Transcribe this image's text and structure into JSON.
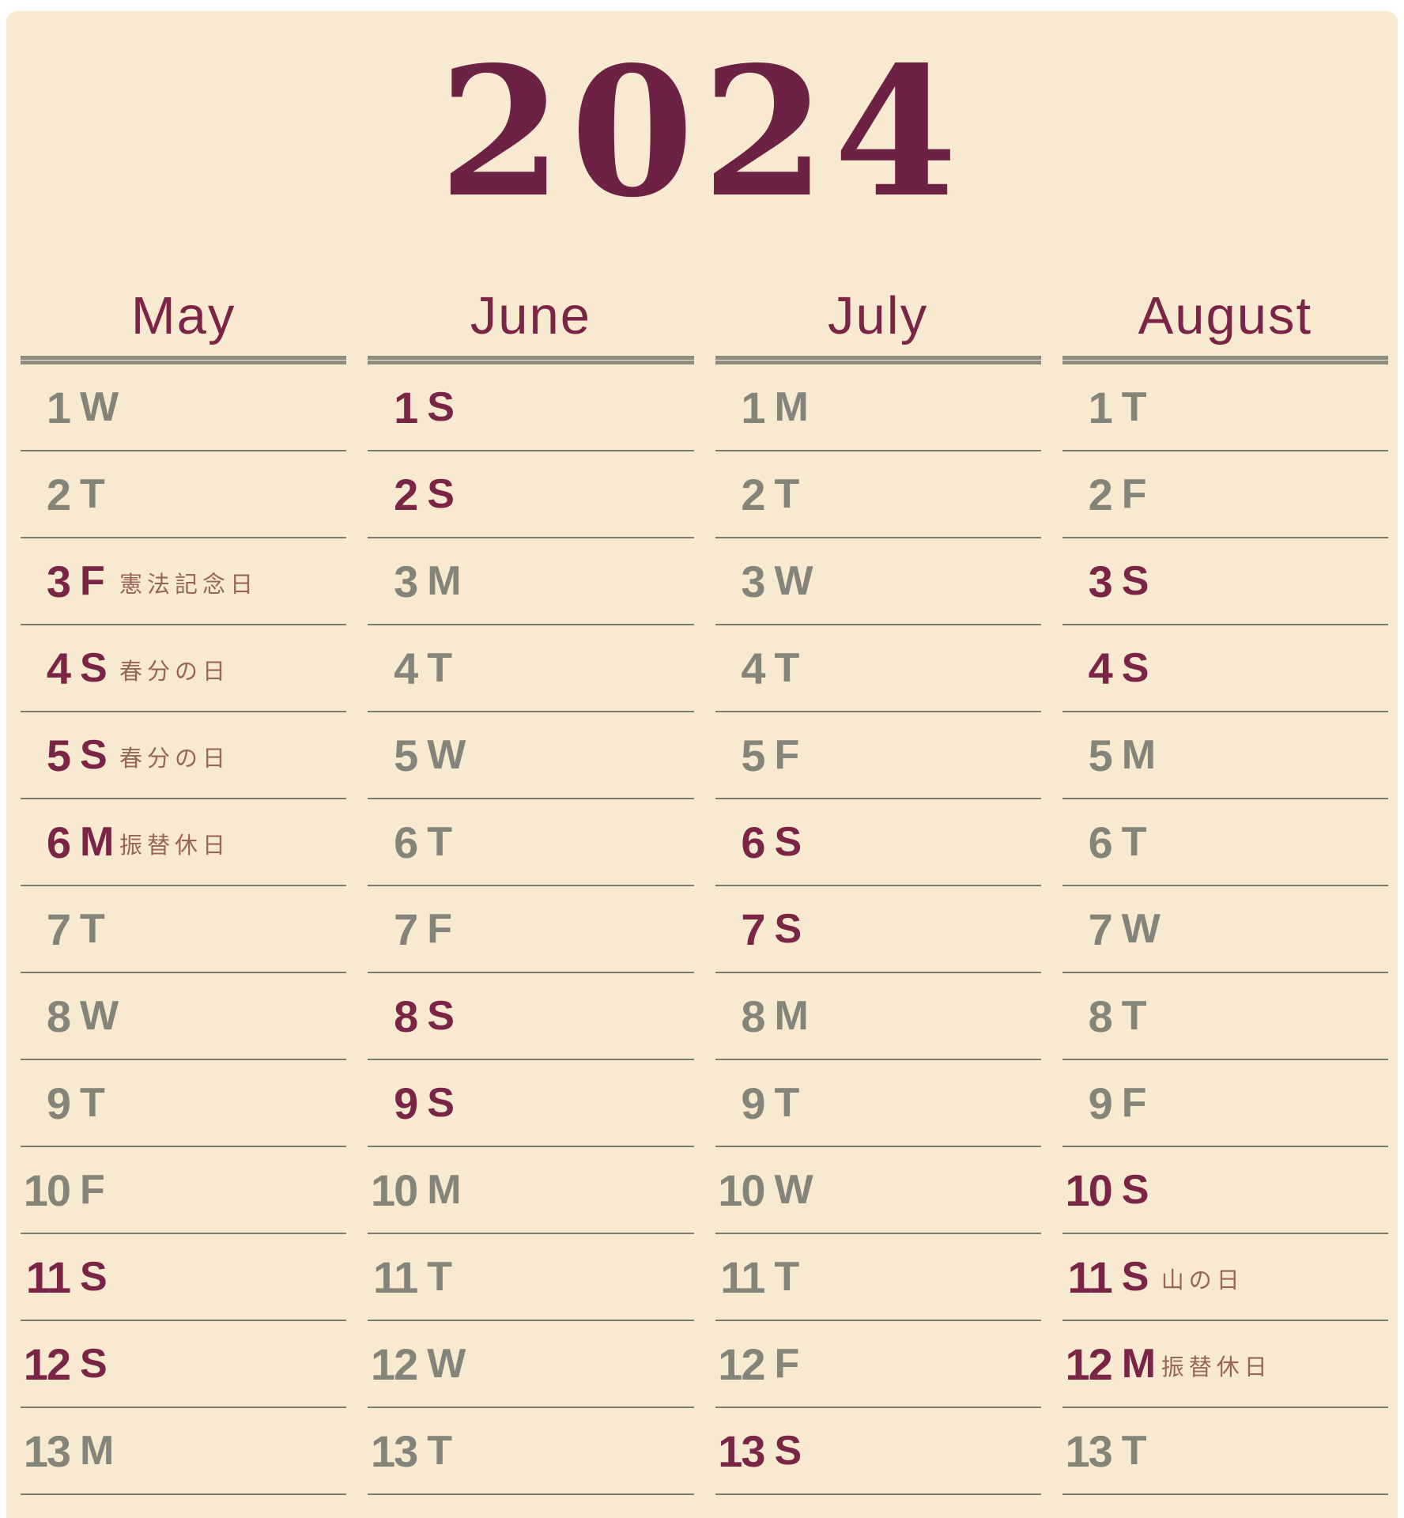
{
  "year": "2024",
  "colors": {
    "background": "#f8e9d1",
    "frame": "#ffffff",
    "year_title": "#6d2145",
    "accent_day": "#7b2546",
    "weekday_gray": "#85847b",
    "row_line": "#7e7d72",
    "header_rule": "#8d8c82",
    "holiday_note": "#97655c"
  },
  "months": [
    {
      "name": "May",
      "days": [
        {
          "day": "1",
          "weekday": "W",
          "accent": false,
          "holiday": ""
        },
        {
          "day": "2",
          "weekday": "T",
          "accent": false,
          "holiday": ""
        },
        {
          "day": "3",
          "weekday": "F",
          "accent": true,
          "holiday": "憲法記念日"
        },
        {
          "day": "4",
          "weekday": "S",
          "accent": true,
          "holiday": "春分の日"
        },
        {
          "day": "5",
          "weekday": "S",
          "accent": true,
          "holiday": "春分の日"
        },
        {
          "day": "6",
          "weekday": "M",
          "accent": true,
          "holiday": "振替休日"
        },
        {
          "day": "7",
          "weekday": "T",
          "accent": false,
          "holiday": ""
        },
        {
          "day": "8",
          "weekday": "W",
          "accent": false,
          "holiday": ""
        },
        {
          "day": "9",
          "weekday": "T",
          "accent": false,
          "holiday": ""
        },
        {
          "day": "10",
          "weekday": "F",
          "accent": false,
          "holiday": ""
        },
        {
          "day": "11",
          "weekday": "S",
          "accent": true,
          "holiday": ""
        },
        {
          "day": "12",
          "weekday": "S",
          "accent": true,
          "holiday": ""
        },
        {
          "day": "13",
          "weekday": "M",
          "accent": false,
          "holiday": ""
        }
      ]
    },
    {
      "name": "June",
      "days": [
        {
          "day": "1",
          "weekday": "S",
          "accent": true,
          "holiday": ""
        },
        {
          "day": "2",
          "weekday": "S",
          "accent": true,
          "holiday": ""
        },
        {
          "day": "3",
          "weekday": "M",
          "accent": false,
          "holiday": ""
        },
        {
          "day": "4",
          "weekday": "T",
          "accent": false,
          "holiday": ""
        },
        {
          "day": "5",
          "weekday": "W",
          "accent": false,
          "holiday": ""
        },
        {
          "day": "6",
          "weekday": "T",
          "accent": false,
          "holiday": ""
        },
        {
          "day": "7",
          "weekday": "F",
          "accent": false,
          "holiday": ""
        },
        {
          "day": "8",
          "weekday": "S",
          "accent": true,
          "holiday": ""
        },
        {
          "day": "9",
          "weekday": "S",
          "accent": true,
          "holiday": ""
        },
        {
          "day": "10",
          "weekday": "M",
          "accent": false,
          "holiday": ""
        },
        {
          "day": "11",
          "weekday": "T",
          "accent": false,
          "holiday": ""
        },
        {
          "day": "12",
          "weekday": "W",
          "accent": false,
          "holiday": ""
        },
        {
          "day": "13",
          "weekday": "T",
          "accent": false,
          "holiday": ""
        }
      ]
    },
    {
      "name": "July",
      "days": [
        {
          "day": "1",
          "weekday": "M",
          "accent": false,
          "holiday": ""
        },
        {
          "day": "2",
          "weekday": "T",
          "accent": false,
          "holiday": ""
        },
        {
          "day": "3",
          "weekday": "W",
          "accent": false,
          "holiday": ""
        },
        {
          "day": "4",
          "weekday": "T",
          "accent": false,
          "holiday": ""
        },
        {
          "day": "5",
          "weekday": "F",
          "accent": false,
          "holiday": ""
        },
        {
          "day": "6",
          "weekday": "S",
          "accent": true,
          "holiday": ""
        },
        {
          "day": "7",
          "weekday": "S",
          "accent": true,
          "holiday": ""
        },
        {
          "day": "8",
          "weekday": "M",
          "accent": false,
          "holiday": ""
        },
        {
          "day": "9",
          "weekday": "T",
          "accent": false,
          "holiday": ""
        },
        {
          "day": "10",
          "weekday": "W",
          "accent": false,
          "holiday": ""
        },
        {
          "day": "11",
          "weekday": "T",
          "accent": false,
          "holiday": ""
        },
        {
          "day": "12",
          "weekday": "F",
          "accent": false,
          "holiday": ""
        },
        {
          "day": "13",
          "weekday": "S",
          "accent": true,
          "holiday": ""
        }
      ]
    },
    {
      "name": "August",
      "days": [
        {
          "day": "1",
          "weekday": "T",
          "accent": false,
          "holiday": ""
        },
        {
          "day": "2",
          "weekday": "F",
          "accent": false,
          "holiday": ""
        },
        {
          "day": "3",
          "weekday": "S",
          "accent": true,
          "holiday": ""
        },
        {
          "day": "4",
          "weekday": "S",
          "accent": true,
          "holiday": ""
        },
        {
          "day": "5",
          "weekday": "M",
          "accent": false,
          "holiday": ""
        },
        {
          "day": "6",
          "weekday": "T",
          "accent": false,
          "holiday": ""
        },
        {
          "day": "7",
          "weekday": "W",
          "accent": false,
          "holiday": ""
        },
        {
          "day": "8",
          "weekday": "T",
          "accent": false,
          "holiday": ""
        },
        {
          "day": "9",
          "weekday": "F",
          "accent": false,
          "holiday": ""
        },
        {
          "day": "10",
          "weekday": "S",
          "accent": true,
          "holiday": ""
        },
        {
          "day": "11",
          "weekday": "S",
          "accent": true,
          "holiday": "山の日"
        },
        {
          "day": "12",
          "weekday": "M",
          "accent": true,
          "holiday": "振替休日"
        },
        {
          "day": "13",
          "weekday": "T",
          "accent": false,
          "holiday": ""
        }
      ]
    }
  ]
}
